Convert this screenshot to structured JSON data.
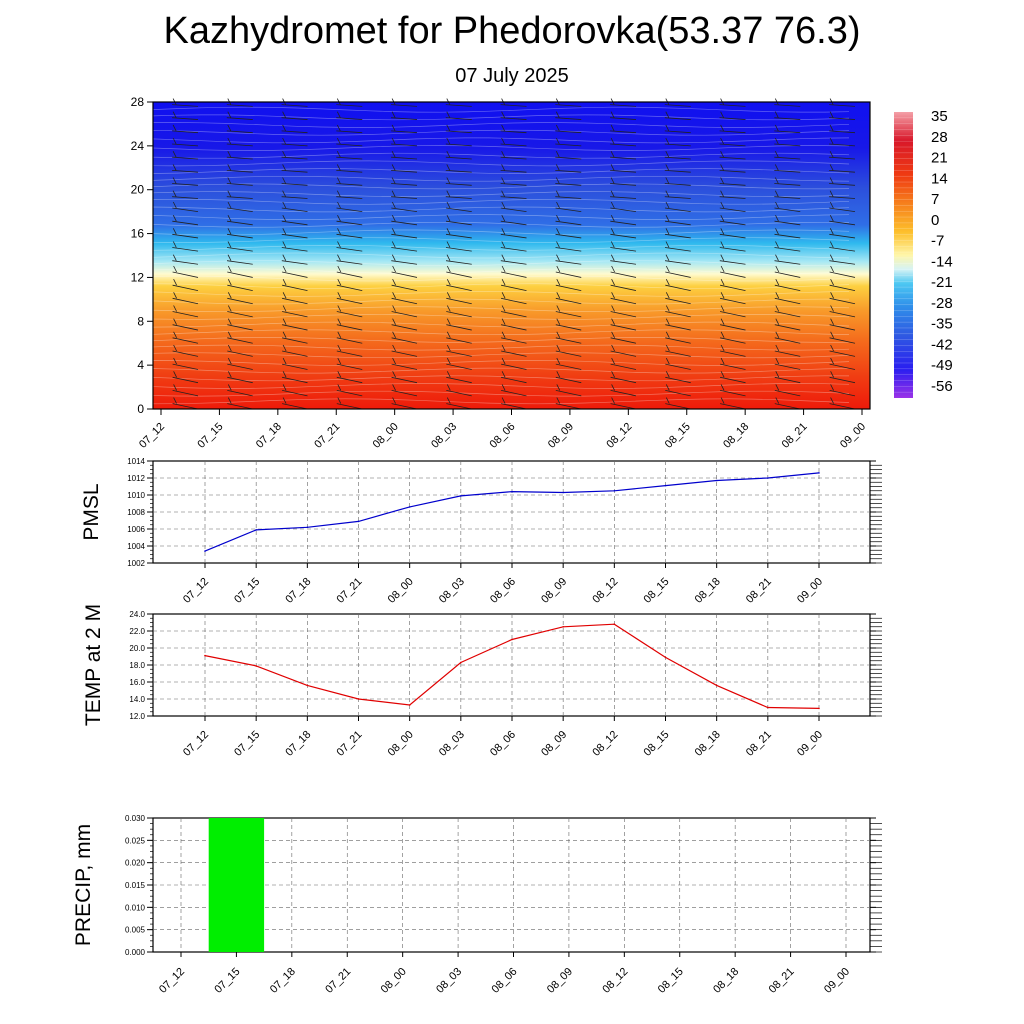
{
  "title": "Kazhydromet for Phedorovka(53.37 76.3)",
  "subtitle": "07 July 2025",
  "colors": {
    "pmsl_line": "#0000cc",
    "temp_line": "#e00000",
    "precip_bar": "#00ee00"
  },
  "chart_data": [
    {
      "type": "heatmap",
      "x_ticks": [
        "07_12",
        "07_15",
        "07_18",
        "07_21",
        "08_00",
        "08_03",
        "08_06",
        "08_09",
        "08_12",
        "08_15",
        "08_18",
        "08_21",
        "09_00"
      ],
      "y_ticks": [
        "0",
        "4",
        "8",
        "12",
        "16",
        "20",
        "24",
        "28"
      ],
      "ylim": [
        0,
        28
      ],
      "colorbar": {
        "labels": [
          "35",
          "28",
          "21",
          "14",
          "7",
          "0",
          "-7",
          "-14",
          "-21",
          "-28",
          "-35",
          "-42",
          "-49",
          "-56"
        ],
        "range": [
          -63,
          35
        ]
      },
      "overlay": "wind-barbs"
    },
    {
      "type": "line",
      "ylabel": "PMSL",
      "categories": [
        "07_12",
        "07_15",
        "07_18",
        "07_21",
        "08_00",
        "08_03",
        "08_06",
        "08_09",
        "08_12",
        "08_15",
        "08_18",
        "08_21",
        "09_00"
      ],
      "values": [
        1003.4,
        1005.9,
        1006.2,
        1006.9,
        1008.6,
        1009.9,
        1010.4,
        1010.3,
        1010.5,
        1011.1,
        1011.7,
        1012.0,
        1012.6
      ],
      "ylim": [
        1002,
        1014
      ],
      "y_ticks": [
        "1002",
        "1004",
        "1006",
        "1008",
        "1010",
        "1012",
        "1014"
      ],
      "grid": true
    },
    {
      "type": "line",
      "ylabel": "TEMP at 2 M",
      "categories": [
        "07_12",
        "07_15",
        "07_18",
        "07_21",
        "08_00",
        "08_03",
        "08_06",
        "08_09",
        "08_12",
        "08_15",
        "08_18",
        "08_21",
        "09_00"
      ],
      "values": [
        19.1,
        17.9,
        15.6,
        14.0,
        13.3,
        18.3,
        21.0,
        22.5,
        22.8,
        18.9,
        15.6,
        13.0,
        12.9
      ],
      "ylim": [
        12,
        24
      ],
      "y_ticks": [
        "12.0",
        "14.0",
        "16.0",
        "18.0",
        "20.0",
        "22.0",
        "24.0"
      ],
      "grid": true
    },
    {
      "type": "bar",
      "ylabel": "PRECIP, mm",
      "categories": [
        "07_12",
        "07_15",
        "07_18",
        "07_21",
        "08_00",
        "08_03",
        "08_06",
        "08_09",
        "08_12",
        "08_15",
        "08_18",
        "08_21",
        "09_00"
      ],
      "values": [
        0,
        0.03,
        0,
        0,
        0,
        0,
        0,
        0,
        0,
        0,
        0,
        0,
        0
      ],
      "ylim": [
        0,
        0.03
      ],
      "y_ticks": [
        "0.000",
        "0.005",
        "0.010",
        "0.015",
        "0.020",
        "0.025",
        "0.030"
      ],
      "grid": true
    }
  ]
}
